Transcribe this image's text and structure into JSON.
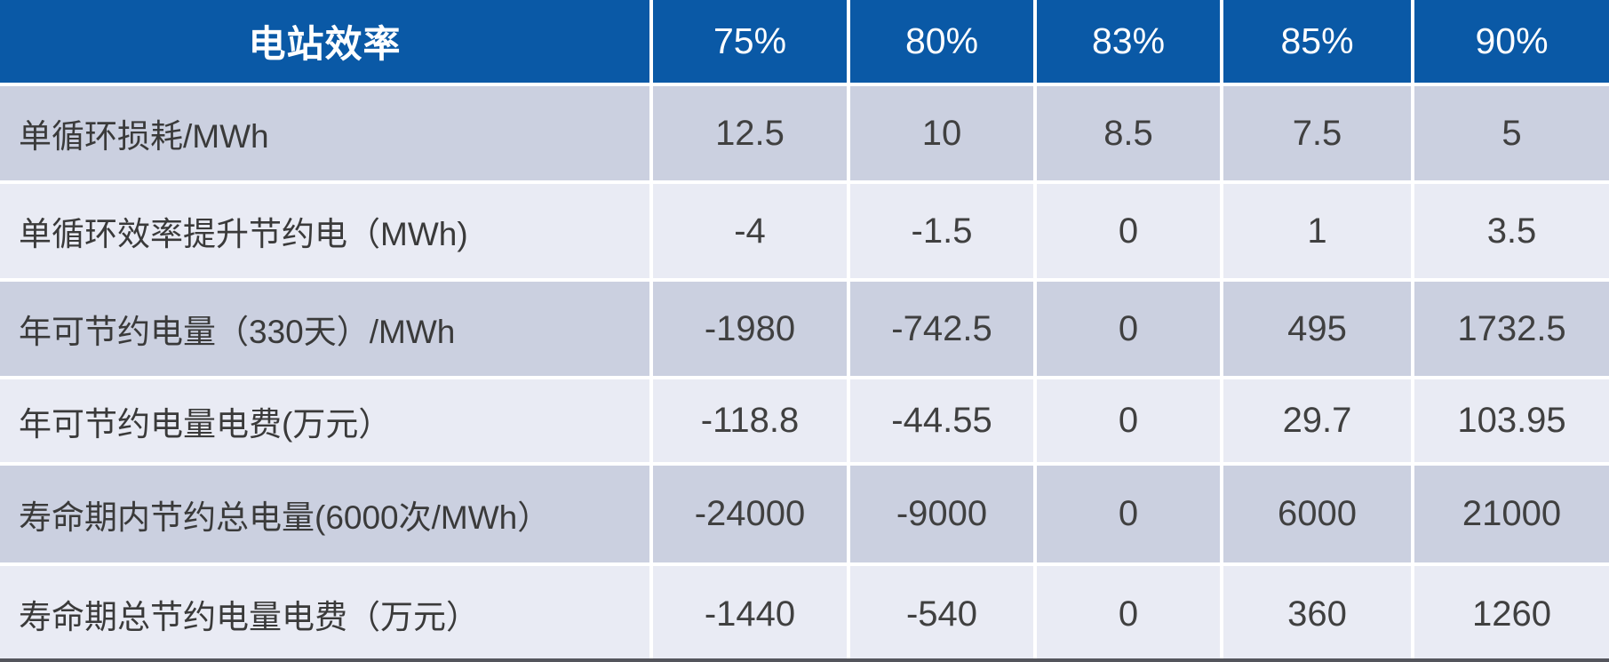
{
  "table": {
    "header": {
      "label": "电站效率",
      "columns": [
        "75%",
        "80%",
        "83%",
        "85%",
        "90%"
      ]
    },
    "rows": [
      {
        "label": "单循环损耗/MWh",
        "values": [
          "12.5",
          "10",
          "8.5",
          "7.5",
          "5"
        ]
      },
      {
        "label": "单循环效率提升节约电（MWh)",
        "values": [
          "-4",
          "-1.5",
          "0",
          "1",
          "3.5"
        ]
      },
      {
        "label": "年可节约电量（330天）/MWh",
        "values": [
          "-1980",
          "-742.5",
          "0",
          "495",
          "1732.5"
        ]
      },
      {
        "label": "年可节约电量电费(万元）",
        "values": [
          "-118.8",
          "-44.55",
          "0",
          "29.7",
          "103.95"
        ]
      },
      {
        "label": "寿命期内节约总电量(6000次/MWh）",
        "values": [
          "-24000",
          "-9000",
          "0",
          "6000",
          "21000"
        ]
      },
      {
        "label": "寿命期总节约电量电费（万元）",
        "values": [
          "-1440",
          "-540",
          "0",
          "360",
          "1260"
        ]
      }
    ]
  },
  "colors": {
    "header_bg": "#0a59a6",
    "header_text": "#ffffff",
    "row_dark_bg": "#cbd0e0",
    "row_light_bg": "#e9ebf4",
    "cell_text": "#404040",
    "gap_lines": "#ffffff",
    "bottom_rule": "#54555c"
  },
  "chart_data": {
    "type": "table",
    "title": "电站效率",
    "columns": [
      "75%",
      "80%",
      "83%",
      "85%",
      "90%"
    ],
    "rows": [
      {
        "label": "单循环损耗/MWh",
        "values": [
          12.5,
          10,
          8.5,
          7.5,
          5
        ]
      },
      {
        "label": "单循环效率提升节约电（MWh)",
        "values": [
          -4,
          -1.5,
          0,
          1,
          3.5
        ]
      },
      {
        "label": "年可节约电量（330天）/MWh",
        "values": [
          -1980,
          -742.5,
          0,
          495,
          1732.5
        ]
      },
      {
        "label": "年可节约电量电费(万元）",
        "values": [
          -118.8,
          -44.55,
          0,
          29.7,
          103.95
        ]
      },
      {
        "label": "寿命期内节约总电量(6000次/MWh）",
        "values": [
          -24000,
          -9000,
          0,
          6000,
          21000
        ]
      },
      {
        "label": "寿命期总节约电量电费（万元）",
        "values": [
          -1440,
          -540,
          0,
          360,
          1260
        ]
      }
    ]
  }
}
